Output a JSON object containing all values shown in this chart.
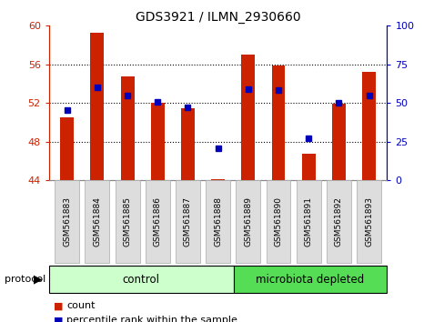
{
  "title": "GDS3921 / ILMN_2930660",
  "samples": [
    "GSM561883",
    "GSM561884",
    "GSM561885",
    "GSM561886",
    "GSM561887",
    "GSM561888",
    "GSM561889",
    "GSM561890",
    "GSM561891",
    "GSM561892",
    "GSM561893"
  ],
  "red_values": [
    50.5,
    59.3,
    54.8,
    52.0,
    51.5,
    44.1,
    57.0,
    55.9,
    46.8,
    51.9,
    55.2
  ],
  "blue_values": [
    51.3,
    53.6,
    52.8,
    52.1,
    51.6,
    47.3,
    53.4,
    53.3,
    48.4,
    52.0,
    52.8
  ],
  "ylim_left": [
    44,
    60
  ],
  "ylim_right": [
    0,
    100
  ],
  "yticks_left": [
    44,
    48,
    52,
    56,
    60
  ],
  "yticks_right": [
    0,
    25,
    50,
    75,
    100
  ],
  "ybase": 44,
  "control_samples": 6,
  "microbiota_samples": 5,
  "control_label": "control",
  "microbiota_label": "microbiota depleted",
  "protocol_label": "protocol",
  "legend_count": "count",
  "legend_percentile": "percentile rank within the sample",
  "bar_color": "#cc2200",
  "dot_color": "#0000bb",
  "control_bg": "#ccffcc",
  "microbiota_bg": "#55dd55",
  "left_axis_color": "#cc2200",
  "right_axis_color": "#0000bb",
  "xtick_bg": "#dddddd",
  "gridline_ticks": [
    48,
    52,
    56
  ]
}
